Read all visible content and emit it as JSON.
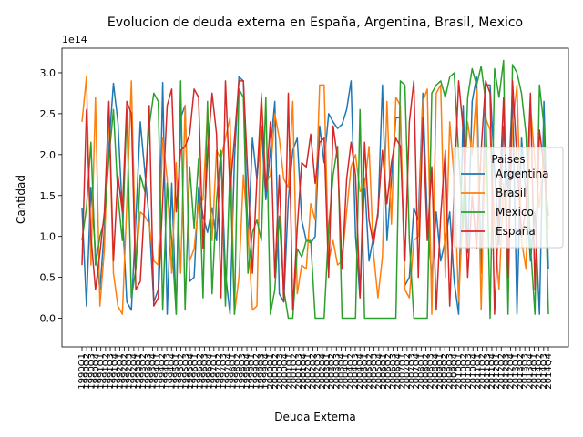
{
  "chart_data": {
    "type": "line",
    "title": "Evolucion de deuda externa en España, Argentina, Brasil, Mexico",
    "xlabel": "Deuda Externa",
    "ylabel": "Cantidad",
    "y_multiplier": "1e14",
    "ylim": [
      -0.35,
      3.3
    ],
    "yticks": [
      "0.0",
      "0.5",
      "1.0",
      "1.5",
      "2.0",
      "2.5",
      "3.0"
    ],
    "ytick_values": [
      0.0,
      0.5,
      1.0,
      1.5,
      2.0,
      2.5,
      3.0
    ],
    "grid": false,
    "legend": {
      "title": "Paises",
      "placement": "center-right"
    },
    "x_start_year": 1990,
    "x_end_year": 2014,
    "series": [
      {
        "name": "Argentina",
        "color": "#1f77b4",
        "values": [
          1.35,
          0.15,
          1.6,
          0.8,
          0.35,
          1.1,
          2.1,
          2.87,
          2.4,
          1.3,
          0.2,
          0.1,
          1.2,
          2.4,
          1.8,
          1.2,
          0.2,
          0.35,
          2.88,
          0.05,
          1.65,
          0.05,
          2.45,
          2.6,
          0.45,
          0.5,
          1.6,
          1.25,
          1.05,
          1.35,
          0.95,
          2.0,
          0.55,
          0.05,
          1.95,
          2.95,
          2.9,
          0.9,
          2.2,
          1.7,
          2.35,
          1.45,
          2.05,
          2.65,
          0.3,
          0.2,
          1.45,
          2.05,
          2.2,
          1.2,
          0.95,
          0.92,
          1.0,
          2.35,
          1.9,
          2.5,
          2.4,
          2.32,
          2.37,
          2.55,
          2.9,
          1.0,
          0.25,
          1.7,
          0.7,
          1.0,
          1.25,
          2.85,
          0.95,
          1.7,
          2.45,
          2.45,
          0.4,
          0.5,
          1.35,
          1.2,
          2.75,
          1.2,
          0.5,
          1.3,
          0.7,
          0.95,
          1.3,
          0.45,
          0.05,
          2.6,
          0.8,
          2.65,
          2.95,
          0.55,
          2.85,
          2.85,
          1.8,
          0.9,
          2.35,
          1.5,
          2.8,
          0.05,
          2.2,
          1.5,
          0.7,
          1.3,
          0.05,
          2.65,
          0.6
        ]
      },
      {
        "name": "Brasil",
        "color": "#ff7f0e",
        "values": [
          2.4,
          2.95,
          0.65,
          2.7,
          0.15,
          0.85,
          2.55,
          0.55,
          0.15,
          0.05,
          1.4,
          2.9,
          0.65,
          1.3,
          1.25,
          1.15,
          0.7,
          0.65,
          2.2,
          1.7,
          0.55,
          1.9,
          0.55,
          2.6,
          0.7,
          0.85,
          1.4,
          1.45,
          2.55,
          0.95,
          2.05,
          1.95,
          2.2,
          2.45,
          0.05,
          0.5,
          1.75,
          1.05,
          0.1,
          0.15,
          2.75,
          1.65,
          1.75,
          2.5,
          2.2,
          1.7,
          1.6,
          2.65,
          0.3,
          0.65,
          0.6,
          1.4,
          1.2,
          2.85,
          2.85,
          0.7,
          0.95,
          0.65,
          0.7,
          1.3,
          1.85,
          2.0,
          1.55,
          1.6,
          2.1,
          0.8,
          0.25,
          0.75,
          2.65,
          1.15,
          2.7,
          2.6,
          0.35,
          0.25,
          0.95,
          1.0,
          2.65,
          2.8,
          0.05,
          2.75,
          2.85,
          0.5,
          2.4,
          1.7,
          0.2,
          1.4,
          2.4,
          2.0,
          2.8,
          0.1,
          2.45,
          2.3,
          1.15,
          0.35,
          1.65,
          0.8,
          2.35,
          2.85,
          0.95,
          0.6,
          2.6,
          1.9,
          1.35,
          2.05,
          1.1
        ]
      },
      {
        "name": "Mexico",
        "color": "#2ca02c",
        "values": [
          0.95,
          1.35,
          2.15,
          0.65,
          1.0,
          1.2,
          1.95,
          2.55,
          1.5,
          0.95,
          2.55,
          0.25,
          0.6,
          1.75,
          1.55,
          2.35,
          2.75,
          2.65,
          0.1,
          1.65,
          0.95,
          0.05,
          2.9,
          0.1,
          1.85,
          1.1,
          1.95,
          0.25,
          2.65,
          0.3,
          1.45,
          2.05,
          0.15,
          1.85,
          0.05,
          2.8,
          2.7,
          0.55,
          1.05,
          1.2,
          0.95,
          2.7,
          0.05,
          0.35,
          1.25,
          0.35,
          0.0,
          0.0,
          0.85,
          0.75,
          0.95,
          0.95,
          0.0,
          0.0,
          0.0,
          1.1,
          1.75,
          2.1,
          0.0,
          0.0,
          0.0,
          0.0,
          2.55,
          0.0,
          0.0,
          0.0,
          0.0,
          0.0,
          0.0,
          0.0,
          0.0,
          2.9,
          2.85,
          0.95,
          0.0,
          0.0,
          0.0,
          0.0,
          2.75,
          2.85,
          2.9,
          2.7,
          2.95,
          3.0,
          2.0,
          1.1,
          2.7,
          3.05,
          2.85,
          3.08,
          2.65,
          0.0,
          3.05,
          2.7,
          3.15,
          0.05,
          3.1,
          3.0,
          2.75,
          2.25,
          0.9,
          0.05,
          2.85,
          2.35,
          0.05
        ]
      },
      {
        "name": "España",
        "color": "#d62728",
        "values": [
          0.65,
          2.55,
          1.0,
          0.35,
          0.8,
          1.3,
          2.65,
          0.7,
          1.75,
          1.3,
          2.65,
          2.5,
          0.35,
          0.45,
          1.45,
          2.6,
          0.15,
          0.25,
          1.45,
          2.6,
          2.8,
          1.3,
          2.05,
          2.1,
          2.25,
          2.8,
          2.7,
          0.85,
          2.0,
          2.75,
          2.25,
          0.25,
          2.9,
          1.55,
          2.2,
          2.9,
          2.9,
          1.7,
          0.55,
          1.7,
          2.7,
          1.55,
          2.4,
          0.5,
          1.75,
          0.2,
          2.75,
          0.1,
          1.1,
          1.9,
          1.85,
          2.25,
          1.65,
          2.15,
          2.2,
          0.5,
          2.35,
          1.95,
          0.6,
          1.7,
          2.15,
          1.75,
          0.25,
          2.15,
          1.2,
          0.9,
          1.3,
          2.05,
          1.4,
          1.9,
          2.2,
          2.1,
          0.7,
          2.4,
          2.9,
          0.5,
          2.45,
          0.95,
          1.85,
          0.1,
          1.25,
          2.05,
          0.15,
          1.6,
          2.9,
          2.3,
          0.5,
          1.5,
          0.85,
          2.05,
          2.9,
          2.75,
          0.05,
          1.35,
          2.7,
          0.5,
          2.9,
          1.95,
          1.0,
          1.35,
          2.75,
          0.35,
          2.3,
          1.85,
          1.25
        ]
      }
    ]
  }
}
